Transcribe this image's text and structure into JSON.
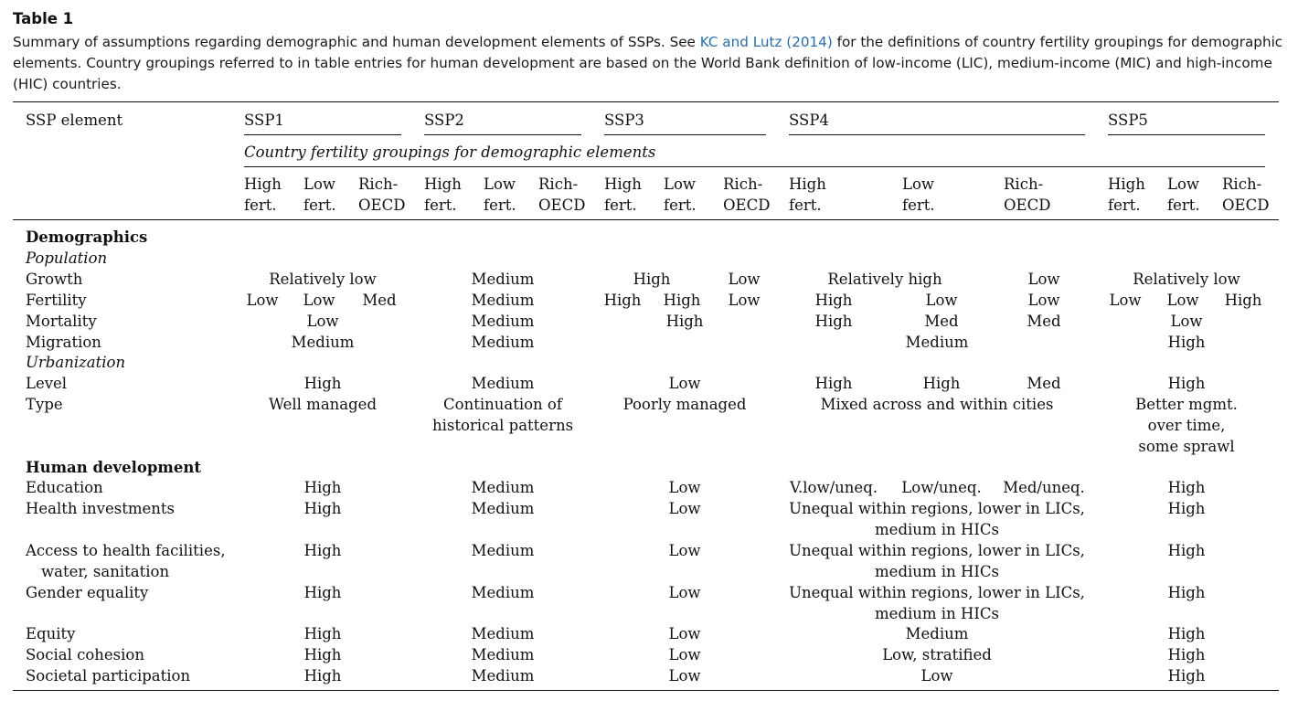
{
  "table_label": "Table  1",
  "caption": {
    "before": "Summary of assumptions regarding demographic and human development elements of SSPs. See ",
    "cite": "KC and Lutz (2014)",
    "after": " for the definitions of country fertility groupings for demographic elements. Country groupings referred to in table entries for human development are based on the World Bank definition of low-income (LIC), medium-income (MIC) and high-income (HIC) countries."
  },
  "header": {
    "col0": "SSP element",
    "ssp1": "SSP1",
    "ssp2": "SSP2",
    "ssp3": "SSP3",
    "ssp4": "SSP4",
    "ssp5": "SSP5",
    "groupings": "Country fertility groupings for demographic elements",
    "high1": "High",
    "high2": "fert.",
    "low1": "Low",
    "low2": "fert.",
    "rich1": "Rich-",
    "rich2": "OECD"
  },
  "sections": {
    "demographics": "Demographics",
    "population": "Population",
    "urbanization": "Urbanization",
    "human_development": "Human development"
  },
  "rows": {
    "growth": {
      "label": "Growth",
      "ssp1": "Relatively low",
      "ssp2": "Medium",
      "ssp3_high": "High",
      "ssp3_low": "Low",
      "ssp4_hl": "Relatively high",
      "ssp4_rich": "Low",
      "ssp5": "Relatively low"
    },
    "fertility": {
      "label": "Fertility",
      "ssp1_h": "Low",
      "ssp1_l": "Low",
      "ssp1_r": "Med",
      "ssp2": "Medium",
      "ssp3_h": "High",
      "ssp3_l": "High",
      "ssp3_r": "Low",
      "ssp4_h": "High",
      "ssp4_l": "Low",
      "ssp4_r": "Low",
      "ssp5_h": "Low",
      "ssp5_l": "Low",
      "ssp5_r": "High"
    },
    "mortality": {
      "label": "Mortality",
      "ssp1": "Low",
      "ssp2": "Medium",
      "ssp3": "High",
      "ssp4_h": "High",
      "ssp4_l": "Med",
      "ssp4_r": "Med",
      "ssp5": "Low"
    },
    "migration": {
      "label": "Migration",
      "ssp1": "Medium",
      "ssp2": "Medium",
      "ssp34": "Medium",
      "ssp5": "High"
    },
    "level": {
      "label": "Level",
      "ssp1": "High",
      "ssp2": "Medium",
      "ssp3": "Low",
      "ssp4_h": "High",
      "ssp4_l": "High",
      "ssp4_r": "Med",
      "ssp5": "High"
    },
    "type": {
      "label": "Type",
      "ssp1": "Well managed",
      "ssp2_1": "Continuation of",
      "ssp2_2": "historical patterns",
      "ssp3": "Poorly managed",
      "ssp4": "Mixed across and within cities",
      "ssp5_1": "Better mgmt.",
      "ssp5_2": "over time,",
      "ssp5_3": "some sprawl"
    },
    "education": {
      "label": "Education",
      "ssp1": "High",
      "ssp2": "Medium",
      "ssp3": "Low",
      "ssp4_h": "V.low/uneq.",
      "ssp4_l": "Low/uneq.",
      "ssp4_r": "Med/uneq.",
      "ssp5": "High"
    },
    "health_inv": {
      "label": "Health investments",
      "ssp1": "High",
      "ssp2": "Medium",
      "ssp3": "Low",
      "ssp4_1": "Unequal within regions, lower in LICs,",
      "ssp4_2": "medium in HICs",
      "ssp5": "High"
    },
    "access": {
      "label_1": "Access to health facilities,",
      "label_2": "water, sanitation",
      "ssp1": "High",
      "ssp2": "Medium",
      "ssp3": "Low",
      "ssp4_1": "Unequal within regions, lower in LICs,",
      "ssp4_2": "medium in HICs",
      "ssp5": "High"
    },
    "gender": {
      "label": "Gender equality",
      "ssp1": "High",
      "ssp2": "Medium",
      "ssp3": "Low",
      "ssp4_1": "Unequal within regions, lower in LICs,",
      "ssp4_2": "medium in HICs",
      "ssp5": "High"
    },
    "equity": {
      "label": "Equity",
      "ssp1": "High",
      "ssp2": "Medium",
      "ssp3": "Low",
      "ssp4": "Medium",
      "ssp5": "High"
    },
    "cohesion": {
      "label": "Social cohesion",
      "ssp1": "High",
      "ssp2": "Medium",
      "ssp3": "Low",
      "ssp4": "Low, stratified",
      "ssp5": "High"
    },
    "participation": {
      "label": "Societal participation",
      "ssp1": "High",
      "ssp2": "Medium",
      "ssp3": "Low",
      "ssp4": "Low",
      "ssp5": "High"
    }
  }
}
